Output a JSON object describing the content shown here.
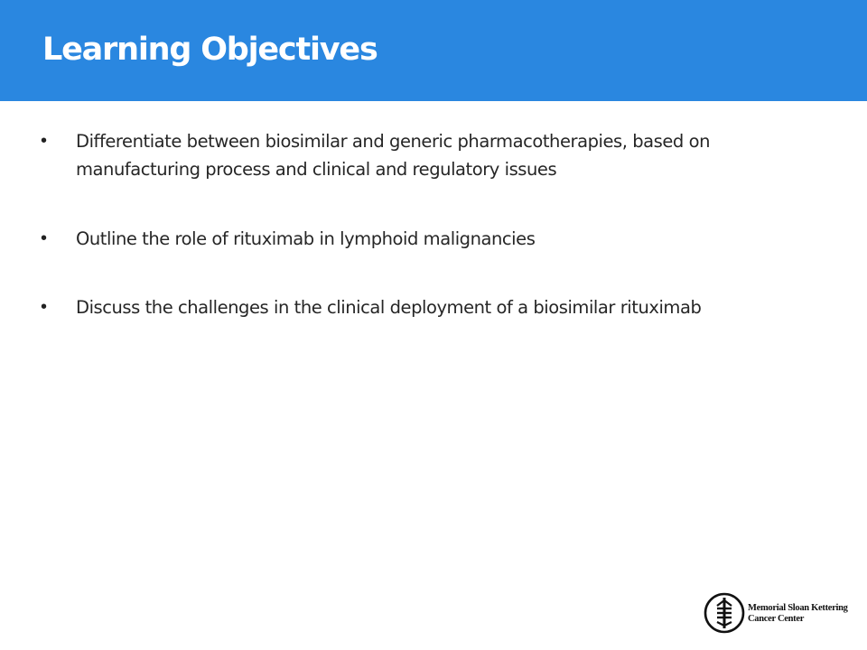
{
  "slide": {
    "title": "Learning Objectives",
    "header_color": "#2a87e0"
  },
  "bullets": [
    {
      "marker": "•",
      "text": "Differentiate between biosimilar and generic pharmacotherapies, based on manufacturing process and clinical and regulatory issues"
    },
    {
      "marker": "•",
      "text": "Outline the role of rituximab in lymphoid malignancies"
    },
    {
      "marker": "•",
      "text": "Discuss the challenges in the clinical deployment of a biosimilar rituximab"
    }
  ],
  "logo": {
    "icon": "msk-logo-icon",
    "line1": "Memorial Sloan Kettering",
    "line2": "Cancer Center"
  }
}
